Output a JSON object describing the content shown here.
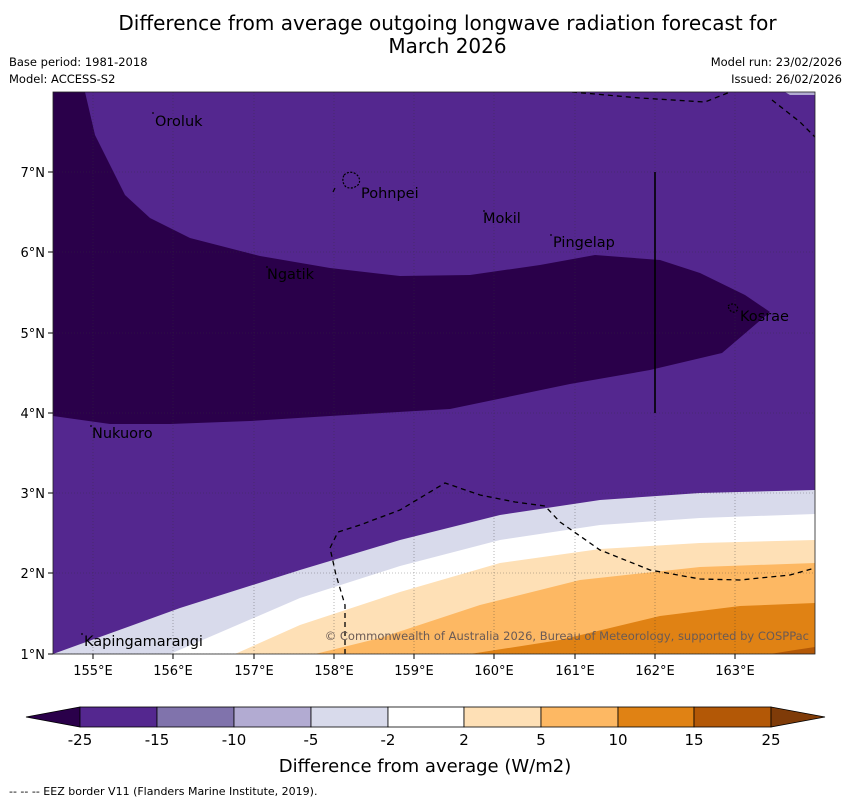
{
  "title_line1": "Difference from average outgoing longwave radiation forecast for",
  "title_line2": "March 2026",
  "meta": {
    "base_period": "Base period: 1981-2018",
    "model": "Model: ACCESS-S2",
    "model_run": "Model run: 23/02/2026",
    "issued": "Issued: 26/02/2026"
  },
  "axes": {
    "lon_ticks": [
      "155°E",
      "156°E",
      "157°E",
      "158°E",
      "159°E",
      "160°E",
      "161°E",
      "162°E",
      "163°E"
    ],
    "lat_ticks": [
      "7°N",
      "6°N",
      "5°N",
      "4°N",
      "3°N",
      "2°N",
      "1°N"
    ]
  },
  "places": [
    {
      "name": "Oroluk"
    },
    {
      "name": "Pohnpei"
    },
    {
      "name": "Mokil"
    },
    {
      "name": "Pingelap"
    },
    {
      "name": "Ngatik"
    },
    {
      "name": "Kosrae"
    },
    {
      "name": "Nukuoro"
    },
    {
      "name": "Kapingamarangi"
    }
  ],
  "copyright": "© Commonwealth of Australia 2026, Bureau of Meteorology, supported by COSPPac",
  "colorbar": {
    "label": "Difference from average (W/m2)",
    "ticks": [
      "-25",
      "-15",
      "-10",
      "-5",
      "-2",
      "2",
      "5",
      "10",
      "15",
      "25"
    ],
    "colors": {
      "lt_neg25": "#2a004a",
      "neg25_neg15": "#54278f",
      "neg15_neg10": "#8073ac",
      "neg10_neg5": "#b2abd2",
      "neg5_neg2": "#d8daeb",
      "neg2_2": "#ffffff",
      "p2_5": "#fee0b6",
      "p5_10": "#fdb863",
      "p10_15": "#e08214",
      "p15_25": "#b35806",
      "gt25": "#7f3b08"
    }
  },
  "footer": "--  --  -- EEZ border V11 (Flanders Marine Institute, 2019)."
}
